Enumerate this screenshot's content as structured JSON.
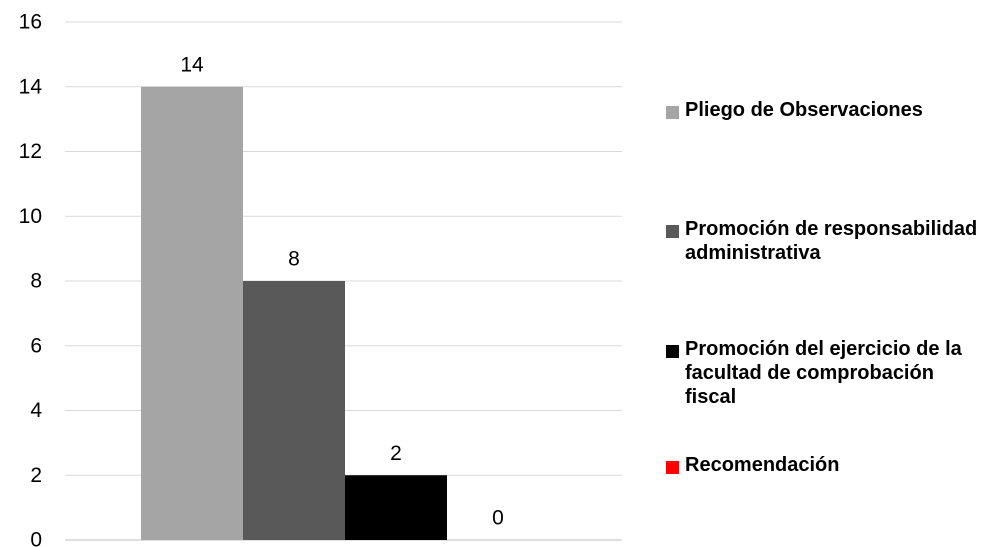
{
  "chart_data": {
    "type": "bar",
    "categories": [
      ""
    ],
    "series": [
      {
        "name": "Pliego de Observaciones",
        "values": [
          14
        ],
        "color": "#a5a5a5"
      },
      {
        "name": "Promoción de responsabilidad administrativa",
        "values": [
          8
        ],
        "color": "#595959"
      },
      {
        "name": "Promoción del ejercicio de la facultad de comprobación fiscal",
        "values": [
          2
        ],
        "color": "#000000"
      },
      {
        "name": "Recomendación",
        "values": [
          0
        ],
        "color": "#ff0000"
      }
    ],
    "ylim": [
      0,
      16
    ],
    "yticks": [
      0,
      2,
      4,
      6,
      8,
      10,
      12,
      14,
      16
    ],
    "grid": true,
    "legend_position": "right",
    "data_labels": true
  }
}
